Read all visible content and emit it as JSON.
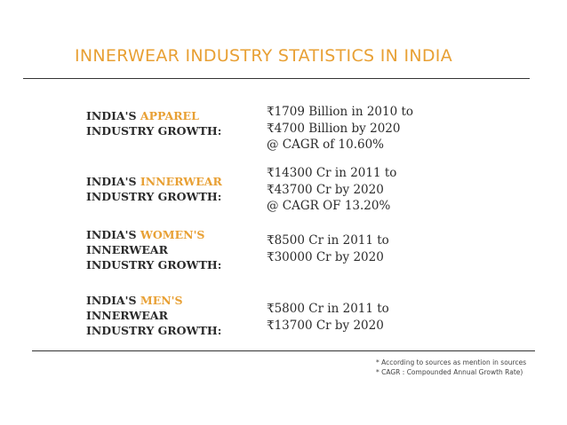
{
  "title": "INNERWEAR INDUSTRY STATISTICS IN INDIA",
  "rows": [
    {
      "label_prefix": "INDIA'S ",
      "label_highlight": "APPAREL",
      "label_lines": [
        "INDUSTRY GROWTH:"
      ],
      "values": [
        "₹1709 Billion in 2010 to",
        "₹4700 Billion by 2020",
        "@ CAGR of 10.60%"
      ]
    },
    {
      "label_prefix": "INDIA'S ",
      "label_highlight": "INNERWEAR",
      "label_lines": [
        "INDUSTRY GROWTH:"
      ],
      "values": [
        "₹14300 Cr in 2011 to",
        "₹43700 Cr by 2020",
        "@ CAGR OF 13.20%"
      ]
    },
    {
      "label_prefix": "INDIA'S ",
      "label_highlight": "WOMEN'S",
      "label_lines": [
        "INNERWEAR",
        "INDUSTRY GROWTH:"
      ],
      "values": [
        "₹8500 Cr in 2011 to",
        "₹30000 Cr by 2020"
      ]
    },
    {
      "label_prefix": "INDIA'S ",
      "label_highlight": "MEN'S",
      "label_lines": [
        "INNERWEAR",
        "INDUSTRY GROWTH:"
      ],
      "values": [
        "₹5800 Cr in 2011 to",
        "₹13700 Cr by 2020"
      ]
    }
  ],
  "footnotes": [
    "* According to sources as mention in sources",
    "* CAGR : Compounded Annual Growth Rate)"
  ],
  "colors": {
    "accent": "#e8a034",
    "text": "#2b2b2b"
  }
}
